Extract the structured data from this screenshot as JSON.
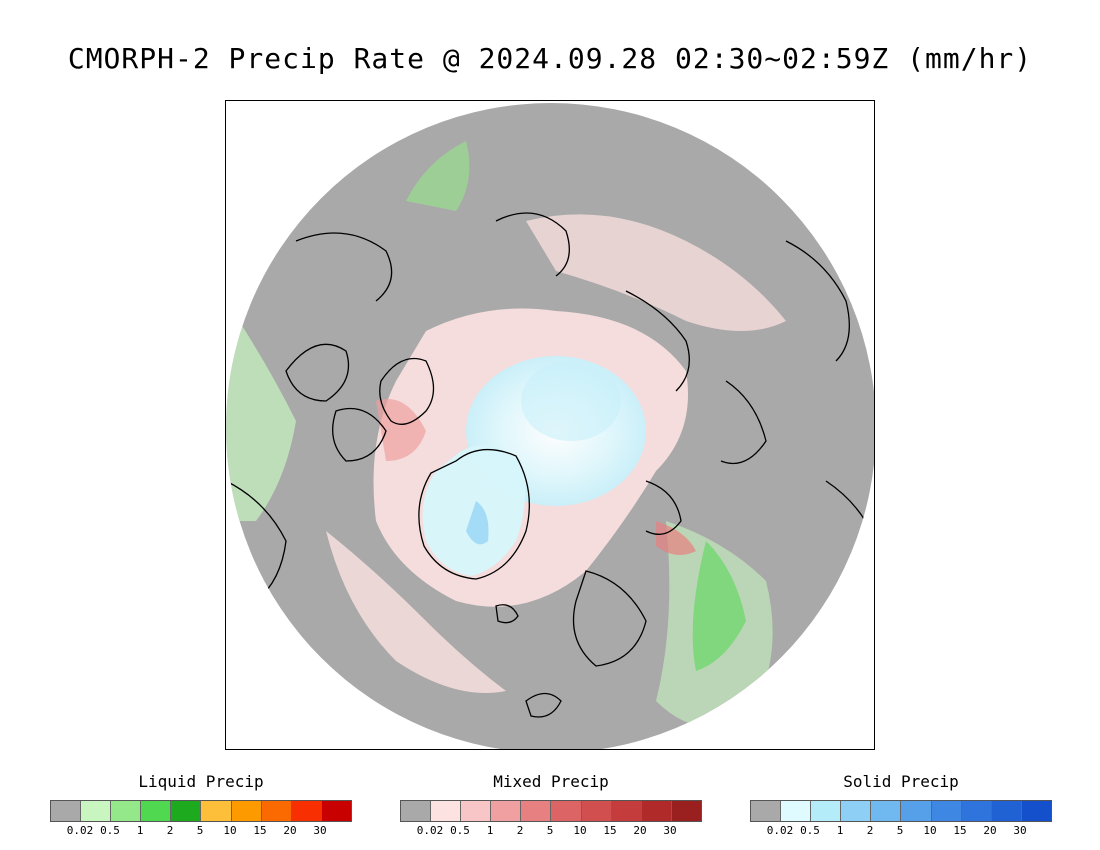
{
  "title": "CMORPH-2 Precip Rate @ 2024.09.28 02:30~02:59Z (mm/hr)",
  "map": {
    "projection": "north-polar-stereographic",
    "background_color": "#a9a9a9",
    "coastline_color": "#000000"
  },
  "legends": [
    {
      "id": "liquid",
      "title": "Liquid Precip",
      "colors": [
        "#a9a9a9",
        "#c8f5c0",
        "#94e88a",
        "#50d850",
        "#1eaa1e",
        "#fdbf3a",
        "#fd9a00",
        "#fb6a00",
        "#f82f00",
        "#c90000"
      ],
      "ticks": [
        "0.02",
        "0.5",
        "1",
        "2",
        "5",
        "10",
        "15",
        "20",
        "30"
      ]
    },
    {
      "id": "mixed",
      "title": "Mixed Precip",
      "colors": [
        "#a9a9a9",
        "#fde2e2",
        "#f8c6c6",
        "#f0a0a0",
        "#e78080",
        "#dc6464",
        "#d24f4f",
        "#c43c3c",
        "#b02a2a",
        "#9a1f1f"
      ],
      "ticks": [
        "0.02",
        "0.5",
        "1",
        "2",
        "5",
        "10",
        "15",
        "20",
        "30"
      ]
    },
    {
      "id": "solid",
      "title": "Solid Precip",
      "colors": [
        "#a9a9a9",
        "#e0fbff",
        "#b4ecfa",
        "#8ed0f5",
        "#70b8f0",
        "#56a0ea",
        "#3e88e4",
        "#2e74dc",
        "#2062d4",
        "#1450cc"
      ],
      "ticks": [
        "0.02",
        "0.5",
        "1",
        "2",
        "5",
        "10",
        "15",
        "20",
        "30"
      ]
    }
  ]
}
